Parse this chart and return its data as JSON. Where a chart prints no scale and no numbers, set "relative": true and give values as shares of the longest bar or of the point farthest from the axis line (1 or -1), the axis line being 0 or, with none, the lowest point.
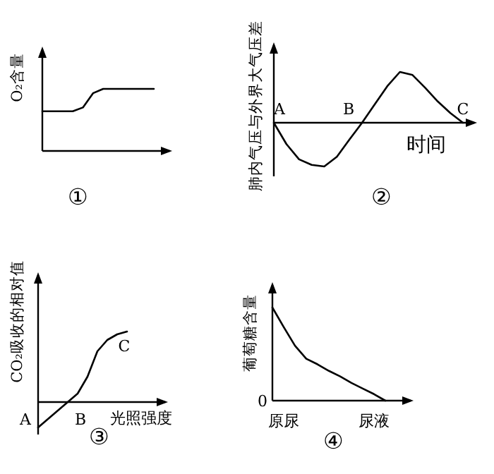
{
  "chart_data": [
    {
      "type": "line",
      "title": "①",
      "ylabel": "O₂含量",
      "relative": true,
      "categories": [
        null,
        null,
        null,
        null,
        null,
        null,
        null,
        null,
        null,
        null,
        null,
        null
      ],
      "color": "#000000",
      "values": [
        0.64,
        0.64,
        0.64,
        0.64,
        0.7,
        0.93,
        1,
        1,
        1,
        1,
        1,
        1
      ]
    },
    {
      "type": "line",
      "title": "②",
      "ylabel": "肺内气压与外界大气压差",
      "xlabel": "时间",
      "relative": true,
      "categories": [
        null,
        null,
        null,
        null,
        null,
        null,
        null,
        null,
        null,
        null,
        null,
        null,
        null,
        null,
        null,
        null
      ],
      "color": "#000000",
      "values": [
        0,
        -0.42,
        -0.72,
        -0.83,
        -0.86,
        -0.67,
        -0.33,
        0,
        0.36,
        0.72,
        1,
        0.94,
        0.69,
        0.42,
        0.19,
        0
      ],
      "annotations": [
        "A",
        "B",
        "C"
      ]
    },
    {
      "type": "line",
      "title": "③",
      "ylabel": "CO₂吸收的相对值",
      "xlabel": "光照强度",
      "relative": true,
      "categories": [
        null,
        null,
        null,
        null,
        null,
        null,
        null,
        null,
        null,
        null
      ],
      "color": "#000000",
      "values": [
        -0.36,
        -0.24,
        -0.12,
        0,
        0.12,
        0.36,
        0.72,
        0.88,
        0.96,
        1
      ],
      "annotations": [
        "A",
        "B",
        "C"
      ]
    },
    {
      "type": "line",
      "title": "④",
      "ylabel": "葡萄糖含量",
      "relative": true,
      "categories": [
        null,
        "原尿",
        null,
        null,
        null,
        null,
        null,
        null,
        null,
        "尿液",
        null
      ],
      "color": "#000000",
      "values": [
        1,
        0.79,
        0.59,
        0.45,
        0.39,
        0.32,
        0.26,
        0.19,
        0.13,
        0.07,
        0
      ],
      "annotations": [
        "0"
      ]
    }
  ]
}
